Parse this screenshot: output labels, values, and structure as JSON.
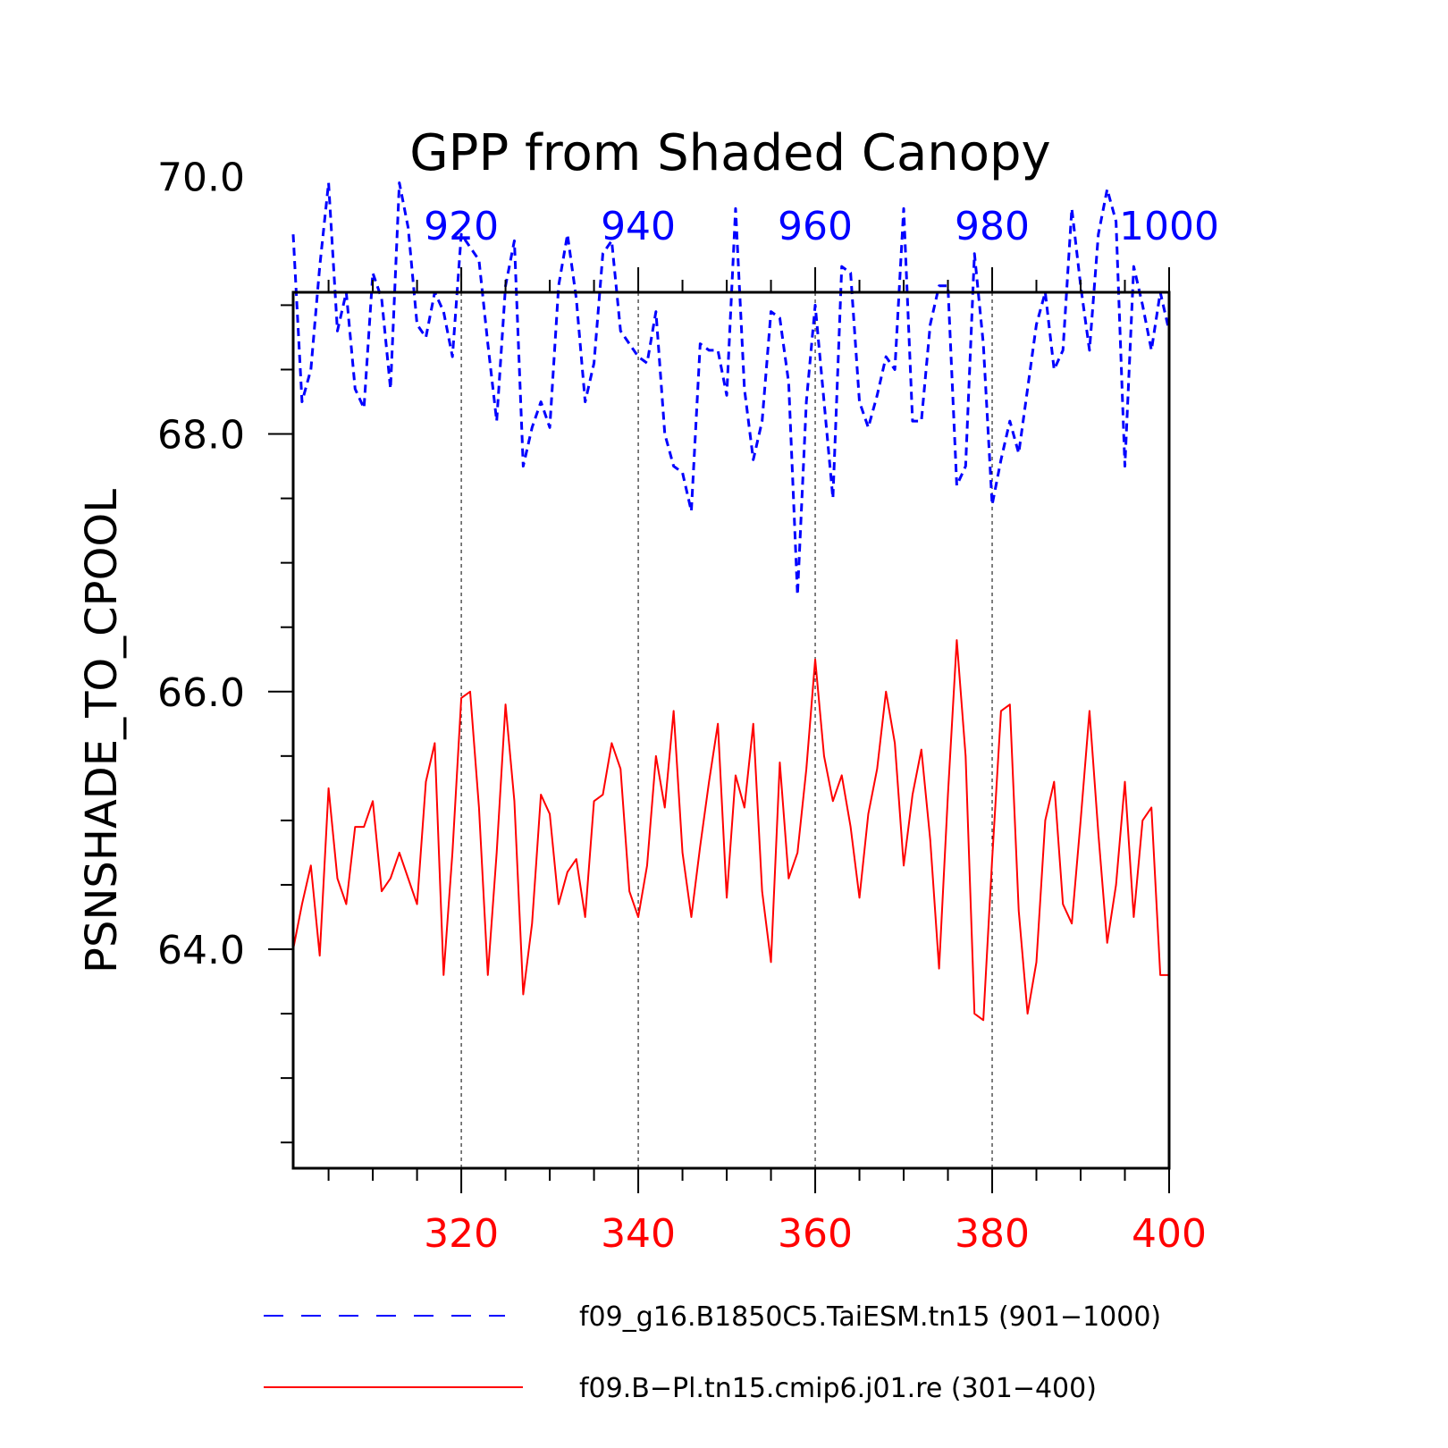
{
  "chart_data": {
    "type": "line",
    "title": "GPP from Shaded Canopy",
    "ylabel": "PSNSHADE_TO_CPOOL",
    "ylim": [
      62.3,
      69.1
    ],
    "yticks": [
      "64.0",
      "66.0",
      "68.0",
      "70.0"
    ],
    "ytick_values": [
      64.0,
      66.0,
      68.0,
      70.0
    ],
    "y_minor_step": 0.5,
    "grid": "vertical dashed lines at labeled x ticks",
    "axes": {
      "top": {
        "color": "#0000ff",
        "range": [
          901,
          1000
        ],
        "ticks": [
          "920",
          "940",
          "960",
          "980",
          "1000"
        ],
        "tick_values": [
          920,
          940,
          960,
          980,
          1000
        ]
      },
      "bottom": {
        "color": "#ff0000",
        "range": [
          301,
          400
        ],
        "ticks": [
          "320",
          "340",
          "360",
          "380",
          "400"
        ],
        "tick_values": [
          320,
          340,
          360,
          380,
          400
        ]
      }
    },
    "series": [
      {
        "name": "f09_g16.B1850C5.TaiESM.tn15 (901−1000)",
        "color": "#0000ff",
        "dash": "dashed",
        "axis": "top",
        "x_start": 901,
        "values": [
          69.55,
          68.25,
          68.5,
          69.3,
          69.95,
          68.8,
          69.1,
          68.35,
          68.2,
          69.25,
          69.05,
          68.35,
          69.95,
          69.6,
          68.85,
          68.75,
          69.1,
          68.95,
          68.6,
          69.55,
          69.45,
          69.35,
          68.7,
          68.1,
          69.15,
          69.5,
          67.75,
          68.05,
          68.25,
          68.05,
          69.15,
          69.55,
          69.05,
          68.25,
          68.55,
          69.4,
          69.5,
          68.8,
          68.7,
          68.6,
          68.55,
          68.95,
          68.0,
          67.75,
          67.7,
          67.4,
          68.7,
          68.65,
          68.65,
          68.3,
          69.75,
          68.35,
          67.8,
          68.1,
          68.95,
          68.9,
          68.4,
          66.75,
          68.25,
          69.0,
          68.25,
          67.5,
          69.3,
          69.25,
          68.25,
          68.05,
          68.3,
          68.6,
          68.5,
          69.75,
          68.1,
          68.1,
          68.85,
          69.15,
          69.15,
          67.6,
          67.75,
          69.4,
          68.7,
          67.45,
          67.8,
          68.1,
          67.85,
          68.35,
          68.85,
          69.1,
          68.5,
          68.65,
          69.75,
          69.15,
          68.65,
          69.55,
          69.9,
          69.65,
          67.75,
          69.3,
          69.0,
          68.65,
          69.1,
          68.8
        ]
      },
      {
        "name": "f09.B−Pl.tn15.cmip6.j01.re (301−400)",
        "color": "#ff0000",
        "dash": "solid",
        "axis": "bottom",
        "x_start": 301,
        "values": [
          64.0,
          64.35,
          64.65,
          63.95,
          65.25,
          64.55,
          64.35,
          64.95,
          64.95,
          65.15,
          64.45,
          64.55,
          64.75,
          64.55,
          64.35,
          65.3,
          65.6,
          63.8,
          64.75,
          65.95,
          66.0,
          65.1,
          63.8,
          64.75,
          65.9,
          65.15,
          63.65,
          64.2,
          65.2,
          65.05,
          64.35,
          64.6,
          64.7,
          64.25,
          65.15,
          65.2,
          65.6,
          65.4,
          64.45,
          64.25,
          64.65,
          65.5,
          65.1,
          65.85,
          64.75,
          64.25,
          64.8,
          65.3,
          65.75,
          64.4,
          65.35,
          65.1,
          65.75,
          64.45,
          63.9,
          65.45,
          64.55,
          64.75,
          65.4,
          66.25,
          65.5,
          65.15,
          65.35,
          64.95,
          64.4,
          65.05,
          65.4,
          66.0,
          65.6,
          64.65,
          65.2,
          65.55,
          64.85,
          63.85,
          65.2,
          66.4,
          65.5,
          63.5,
          63.45,
          64.7,
          65.85,
          65.9,
          64.3,
          63.5,
          63.9,
          65.0,
          65.3,
          64.35,
          64.2,
          65.0,
          65.85,
          64.9,
          64.05,
          64.5,
          65.3,
          64.25,
          65.0,
          65.1,
          63.8,
          63.8
        ]
      }
    ],
    "legend_placement": "bottom"
  }
}
